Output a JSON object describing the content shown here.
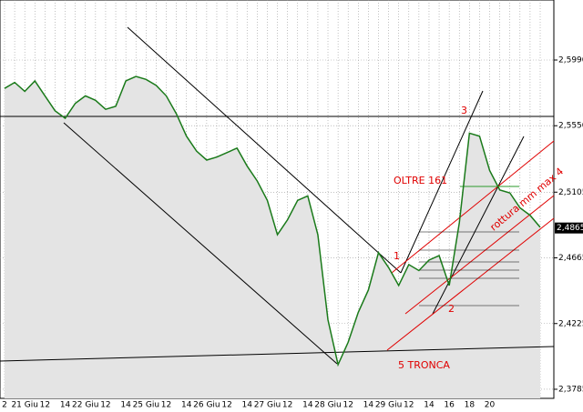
{
  "chart_data": {
    "type": "line",
    "categories": [
      "2",
      null,
      "21 Giu",
      null,
      "12",
      null,
      "14",
      null,
      "22 Giu",
      null,
      "12",
      null,
      "14",
      null,
      "25 Giu",
      null,
      "12",
      null,
      "14",
      null,
      "26 Giu",
      null,
      "12",
      null,
      "14",
      null,
      "27 Giu",
      null,
      "12",
      null,
      "14",
      null,
      "28 Giu",
      null,
      "12",
      null,
      "14",
      null,
      "29 Giu",
      null,
      "12",
      null,
      "14",
      null,
      "16",
      null,
      "18",
      null,
      "20",
      null,
      null,
      null,
      null,
      null
    ],
    "values": [
      2.58,
      2.584,
      2.578,
      2.585,
      2.575,
      2.565,
      2.56,
      2.57,
      2.575,
      2.572,
      2.566,
      2.568,
      2.585,
      2.588,
      2.586,
      2.582,
      2.575,
      2.563,
      2.548,
      2.538,
      2.532,
      2.534,
      2.537,
      2.54,
      2.528,
      2.518,
      2.505,
      2.482,
      2.492,
      2.505,
      2.508,
      2.482,
      2.425,
      2.395,
      2.41,
      2.43,
      2.445,
      2.47,
      2.46,
      2.448,
      2.462,
      2.458,
      2.465,
      2.468,
      2.448,
      2.49,
      2.55,
      2.548,
      2.525,
      2.512,
      2.51,
      2.5,
      2.495,
      2.487
    ],
    "color": "#1a7a1a",
    "ylim": [
      2.3724,
      2.6392
    ],
    "yticks": [
      {
        "value": 2.599,
        "label": "2,5990"
      },
      {
        "value": 2.555,
        "label": "2,5550"
      },
      {
        "value": 2.5105,
        "label": "2,5105"
      },
      {
        "value": 2.4665,
        "label": "2,4665"
      },
      {
        "value": 2.4225,
        "label": "2,4225"
      },
      {
        "value": 2.3785,
        "label": "2,3785"
      }
    ],
    "current_price": {
      "value": 2.4865,
      "label": "2,4865"
    },
    "grid": true,
    "annotations": [
      "1",
      "2",
      "3",
      "OLTRE 161",
      "rottura mm max 4",
      "5 TRONCA"
    ]
  }
}
